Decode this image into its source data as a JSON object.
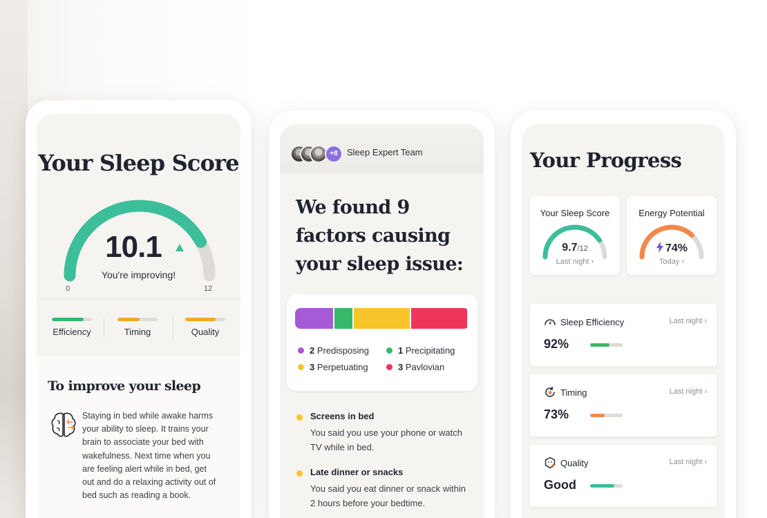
{
  "colors": {
    "teal": "#3cbe9a",
    "green": "#36b86b",
    "orange": "#f5a623",
    "coral": "#f3884a",
    "purple": "#a65ad6",
    "yellow": "#f7c52a",
    "red": "#f0355a",
    "track": "#dedbd7"
  },
  "sleep_score_screen": {
    "title": "Your Sleep Score",
    "score": "10.1",
    "score_fraction": 0.84,
    "trend_icon": "up-triangle-icon",
    "subtitle": "You're improving!",
    "min_label": "0",
    "max_label": "12",
    "metrics": [
      {
        "label": "Efficiency",
        "fill": 0.8,
        "color": "#36b86b"
      },
      {
        "label": "Timing",
        "fill": 0.55,
        "color": "#f5a623"
      },
      {
        "label": "Quality",
        "fill": 0.75,
        "color": "#f5a623"
      }
    ],
    "improve": {
      "title": "To improve your sleep",
      "icon": "brain-icon",
      "body": "Staying in bed while awake harms your ability to sleep. It trains your brain to associate your bed with wakefulness. Next time when you are feeling alert while in bed, get out and do a relaxing activity out of bed such as reading a book."
    }
  },
  "factors_screen": {
    "team_label": "Sleep Expert Team",
    "team_more": "+8",
    "title": "We found 9 factors causing your sleep issue:",
    "breakdown": [
      {
        "count": "2",
        "label": "Predisposing",
        "color": "#a65ad6",
        "share": 0.22
      },
      {
        "count": "1",
        "label": "Precipitating",
        "color": "#36b86b",
        "share": 0.11
      },
      {
        "count": "3",
        "label": "Perpetuating",
        "color": "#f7c52a",
        "share": 0.33
      },
      {
        "count": "3",
        "label": "Pavlovian",
        "color": "#f0355a",
        "share": 0.33
      }
    ],
    "factors": [
      {
        "title": "Screens in bed",
        "desc": "You said you use your phone or watch TV while in bed."
      },
      {
        "title": "Late dinner or snacks",
        "desc": "You said you eat dinner or snack within 2 hours before your bedtime."
      }
    ]
  },
  "progress_screen": {
    "title": "Your Progress",
    "sleep_card": {
      "title": "Your Sleep Score",
      "value": "9.7",
      "max": "/12",
      "fraction": 0.81,
      "sub": "Last night ›"
    },
    "energy_card": {
      "title": "Energy Potential",
      "value": "74%",
      "fraction": 0.74,
      "icon": "lightning-bolt-icon",
      "sub": "Today ›"
    },
    "stats": [
      {
        "title": "Sleep Efficiency",
        "icon": "speedometer-icon",
        "link": "Last night ›",
        "value": "92%",
        "fill": 0.6,
        "color": "#36b86b"
      },
      {
        "title": "Timing",
        "icon": "clock-refresh-icon",
        "link": "Last night ›",
        "value": "73%",
        "fill": 0.45,
        "color": "#f3884a"
      },
      {
        "title": "Quality",
        "icon": "face-icon",
        "link": "Last night ›",
        "value": "Good",
        "fill": 0.75,
        "color": "#3cbe9a"
      }
    ]
  }
}
